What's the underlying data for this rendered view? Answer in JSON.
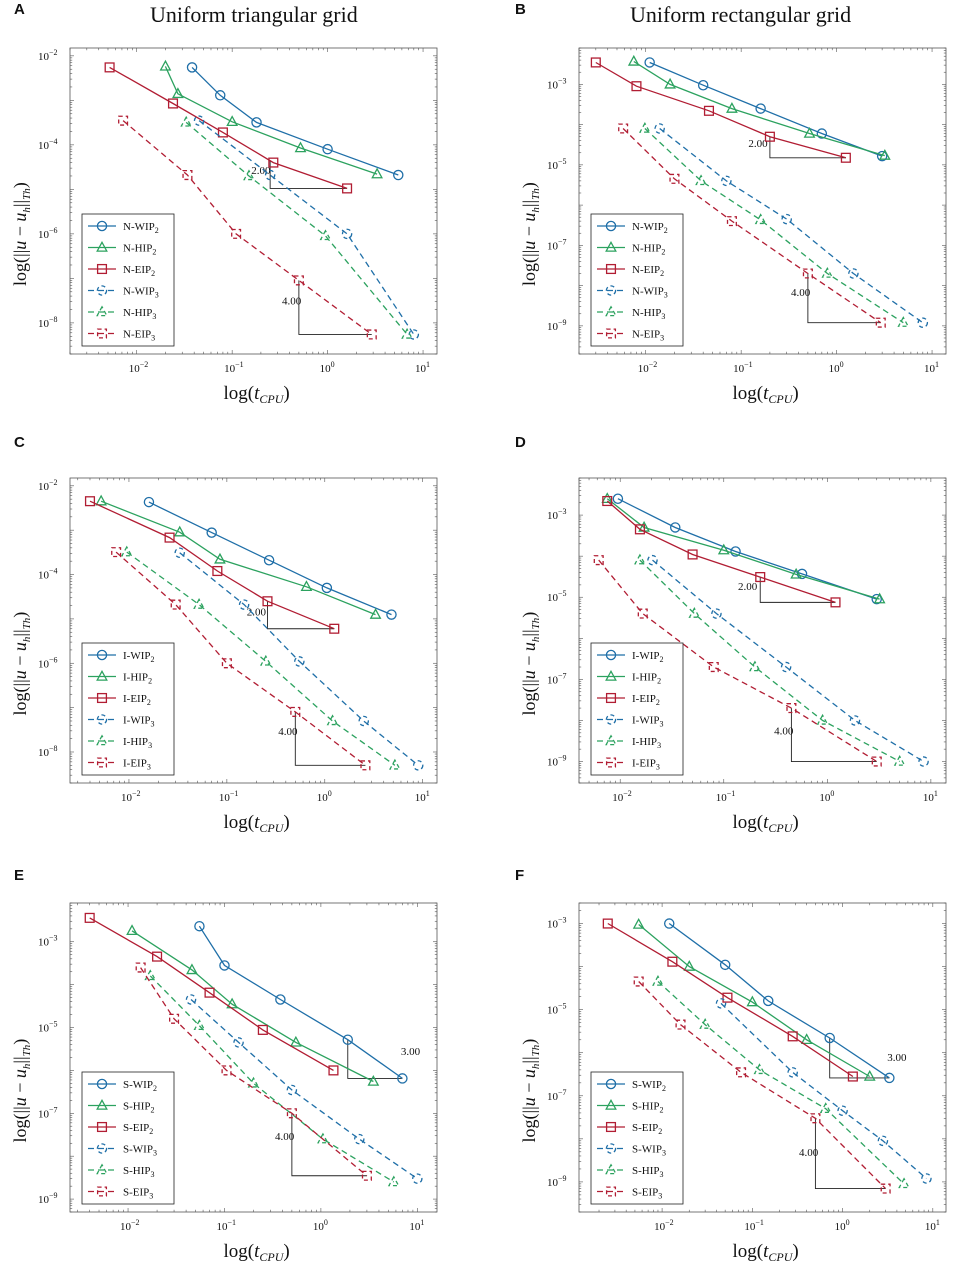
{
  "figure": {
    "col_titles": [
      "Uniform triangular grid",
      "Uniform rectangular grid"
    ]
  },
  "colors": {
    "WIP": "#1f6fa8",
    "HIP": "#2ca25f",
    "EIP": "#b11d33",
    "axis": "#555555",
    "text": "#111111"
  },
  "chart_data": [
    {
      "panel": "A",
      "type": "line",
      "title": "Uniform triangular grid",
      "xlabel": "log(t_CPU)",
      "ylabel": "log(||u − u_h||_Th)",
      "xscale": "log",
      "yscale": "log",
      "xlim": [
        0.002,
        14
      ],
      "ylim": [
        2e-09,
        0.015
      ],
      "xticks": [
        0.01,
        0.1,
        1,
        10
      ],
      "yticks": [
        1e-08,
        1e-06,
        0.0001,
        0.01
      ],
      "legend_position": "bottom-left",
      "series": [
        {
          "name": "N-WIP2",
          "color": "WIP",
          "dash": false,
          "marker": "circle",
          "x": [
            0.038,
            0.075,
            0.18,
            1.0,
            5.5
          ],
          "y": [
            0.0055,
            0.0013,
            0.00032,
            8e-05,
            2.1e-05
          ]
        },
        {
          "name": "N-HIP2",
          "color": "HIP",
          "dash": false,
          "marker": "triangle",
          "x": [
            0.02,
            0.027,
            0.1,
            0.52,
            3.3
          ],
          "y": [
            0.0058,
            0.0014,
            0.00033,
            8.5e-05,
            2.2e-05
          ]
        },
        {
          "name": "N-EIP2",
          "color": "EIP",
          "dash": false,
          "marker": "square",
          "x": [
            0.0052,
            0.024,
            0.08,
            0.27,
            1.6
          ],
          "y": [
            0.0055,
            0.00085,
            0.00019,
            4e-05,
            1.05e-05
          ]
        },
        {
          "name": "N-WIP3",
          "color": "WIP",
          "dash": true,
          "marker": "circle",
          "x": [
            0.045,
            0.25,
            1.6,
            8.0
          ],
          "y": [
            0.00035,
            2.1e-05,
            1e-06,
            5.5e-09
          ]
        },
        {
          "name": "N-HIP3",
          "color": "HIP",
          "dash": true,
          "marker": "triangle",
          "x": [
            0.033,
            0.15,
            0.95,
            6.8
          ],
          "y": [
            0.00032,
            2e-05,
            9e-07,
            5.5e-09
          ]
        },
        {
          "name": "N-EIP3",
          "color": "EIP",
          "dash": true,
          "marker": "square",
          "x": [
            0.0072,
            0.034,
            0.11,
            0.5,
            2.9
          ],
          "y": [
            0.00035,
            2.1e-05,
            1e-06,
            9e-08,
            5.5e-09
          ]
        }
      ],
      "slopes": [
        {
          "label": "2.00",
          "x1": 0.25,
          "x2": 1.6,
          "y1": 4.5e-05,
          "y2": 1.05e-05,
          "label_x": 0.2,
          "label_y": 2.2e-05
        },
        {
          "label": "4.00",
          "x1": 0.5,
          "x2": 2.9,
          "y1": 9e-08,
          "y2": 5.5e-09,
          "label_x": 0.42,
          "label_y": 2.6e-08
        }
      ]
    },
    {
      "panel": "B",
      "type": "line",
      "title": "Uniform rectangular grid",
      "xlabel": "log(t_CPU)",
      "ylabel": "log(||u − u_h||_Th)",
      "xscale": "log",
      "yscale": "log",
      "xlim": [
        0.002,
        14
      ],
      "ylim": [
        2e-10,
        0.008
      ],
      "xticks": [
        0.01,
        0.1,
        1,
        10
      ],
      "yticks": [
        1e-09,
        1e-07,
        1e-05,
        0.001
      ],
      "legend_position": "bottom-left",
      "series": [
        {
          "name": "N-WIP2",
          "color": "WIP",
          "dash": false,
          "marker": "circle",
          "x": [
            0.011,
            0.04,
            0.16,
            0.7,
            3.0
          ],
          "y": [
            0.0035,
            0.00095,
            0.00025,
            6e-05,
            1.65e-05
          ]
        },
        {
          "name": "N-HIP2",
          "color": "HIP",
          "dash": false,
          "marker": "triangle",
          "x": [
            0.0075,
            0.018,
            0.08,
            0.52,
            3.2
          ],
          "y": [
            0.0037,
            0.001,
            0.00025,
            6e-05,
            1.7e-05
          ]
        },
        {
          "name": "N-EIP2",
          "color": "EIP",
          "dash": false,
          "marker": "square",
          "x": [
            0.003,
            0.008,
            0.046,
            0.2,
            1.25
          ],
          "y": [
            0.0035,
            0.0009,
            0.00022,
            5e-05,
            1.5e-05
          ]
        },
        {
          "name": "N-WIP3",
          "color": "WIP",
          "dash": true,
          "marker": "circle",
          "x": [
            0.014,
            0.07,
            0.3,
            1.5,
            8.0
          ],
          "y": [
            8e-05,
            4e-06,
            4.5e-07,
            2e-08,
            1.2e-09
          ]
        },
        {
          "name": "N-HIP3",
          "color": "HIP",
          "dash": true,
          "marker": "triangle",
          "x": [
            0.0098,
            0.038,
            0.16,
            0.8,
            5.0
          ],
          "y": [
            8e-05,
            4e-06,
            4.3e-07,
            2e-08,
            1.2e-09
          ]
        },
        {
          "name": "N-EIP3",
          "color": "EIP",
          "dash": true,
          "marker": "square",
          "x": [
            0.0058,
            0.02,
            0.08,
            0.5,
            2.9
          ],
          "y": [
            8e-05,
            4.5e-06,
            4e-07,
            2e-08,
            1.2e-09
          ]
        }
      ],
      "slopes": [
        {
          "label": "2.00",
          "x1": 0.2,
          "x2": 1.25,
          "y1": 5e-05,
          "y2": 1.5e-05,
          "label_x": 0.15,
          "label_y": 2.8e-05
        },
        {
          "label": "4.00",
          "x1": 0.5,
          "x2": 2.9,
          "y1": 2e-08,
          "y2": 1.2e-09,
          "label_x": 0.42,
          "label_y": 5.5e-09
        }
      ]
    },
    {
      "panel": "C",
      "type": "line",
      "title": "",
      "xlabel": "log(t_CPU)",
      "ylabel": "log(||u − u_h||_Th)",
      "xscale": "log",
      "yscale": "log",
      "xlim": [
        0.0025,
        14
      ],
      "ylim": [
        2e-09,
        0.015
      ],
      "xticks": [
        0.01,
        0.1,
        1,
        10
      ],
      "yticks": [
        1e-08,
        1e-06,
        0.0001,
        0.01
      ],
      "legend_position": "bottom-left",
      "series": [
        {
          "name": "I-WIP2",
          "color": "WIP",
          "dash": false,
          "marker": "circle",
          "x": [
            0.016,
            0.07,
            0.27,
            1.05,
            4.8
          ],
          "y": [
            0.0043,
            0.00088,
            0.00021,
            5e-05,
            1.25e-05
          ]
        },
        {
          "name": "I-HIP2",
          "color": "HIP",
          "dash": false,
          "marker": "triangle",
          "x": [
            0.0052,
            0.033,
            0.085,
            0.65,
            3.3
          ],
          "y": [
            0.0045,
            0.0009,
            0.00022,
            5.3e-05,
            1.25e-05
          ]
        },
        {
          "name": "I-EIP2",
          "color": "EIP",
          "dash": false,
          "marker": "square",
          "x": [
            0.004,
            0.026,
            0.08,
            0.26,
            1.25
          ],
          "y": [
            0.0045,
            0.00068,
            0.00012,
            2.5e-05,
            6e-06
          ]
        },
        {
          "name": "I-WIP3",
          "color": "WIP",
          "dash": true,
          "marker": "circle",
          "x": [
            0.033,
            0.15,
            0.55,
            2.5,
            9.0
          ],
          "y": [
            0.00031,
            2.1e-05,
            1.1e-06,
            5e-08,
            5e-09
          ]
        },
        {
          "name": "I-HIP3",
          "color": "HIP",
          "dash": true,
          "marker": "triangle",
          "x": [
            0.0095,
            0.052,
            0.25,
            1.2,
            5.2
          ],
          "y": [
            0.00032,
            2.1e-05,
            1.1e-06,
            5e-08,
            5e-09
          ]
        },
        {
          "name": "I-EIP3",
          "color": "EIP",
          "dash": true,
          "marker": "square",
          "x": [
            0.0074,
            0.03,
            0.1,
            0.5,
            2.6
          ],
          "y": [
            0.00032,
            2.1e-05,
            1e-06,
            8e-08,
            5e-09
          ]
        }
      ],
      "slopes": [
        {
          "label": "2.00",
          "x1": 0.26,
          "x2": 1.25,
          "y1": 2.5e-05,
          "y2": 6e-06,
          "label_x": 0.2,
          "label_y": 1.2e-05
        },
        {
          "label": "4.00",
          "x1": 0.5,
          "x2": 2.6,
          "y1": 8e-08,
          "y2": 5e-09,
          "label_x": 0.42,
          "label_y": 2.4e-08
        }
      ]
    },
    {
      "panel": "D",
      "type": "line",
      "title": "",
      "xlabel": "log(t_CPU)",
      "ylabel": "log(||u − u_h||_Th)",
      "xscale": "log",
      "yscale": "log",
      "xlim": [
        0.004,
        14
      ],
      "ylim": [
        3e-10,
        0.008
      ],
      "xticks": [
        0.01,
        0.1,
        1,
        10
      ],
      "yticks": [
        1e-09,
        1e-07,
        1e-05,
        0.001
      ],
      "legend_position": "bottom-left",
      "series": [
        {
          "name": "I-WIP2",
          "color": "WIP",
          "dash": false,
          "marker": "circle",
          "x": [
            0.0095,
            0.034,
            0.13,
            0.57,
            3.0
          ],
          "y": [
            0.0025,
            0.0005,
            0.00013,
            3.7e-05,
            9e-06
          ]
        },
        {
          "name": "I-HIP2",
          "color": "HIP",
          "dash": false,
          "marker": "triangle",
          "x": [
            0.0075,
            0.017,
            0.1,
            0.5,
            3.2
          ],
          "y": [
            0.0025,
            0.0005,
            0.00014,
            3.6e-05,
            9e-06
          ]
        },
        {
          "name": "I-EIP2",
          "color": "EIP",
          "dash": false,
          "marker": "square",
          "x": [
            0.0075,
            0.0155,
            0.05,
            0.225,
            1.2
          ],
          "y": [
            0.0022,
            0.00045,
            0.00011,
            3.1e-05,
            7.5e-06
          ]
        },
        {
          "name": "I-WIP3",
          "color": "WIP",
          "dash": true,
          "marker": "circle",
          "x": [
            0.0205,
            0.085,
            0.4,
            1.85,
            8.5
          ],
          "y": [
            8e-05,
            4e-06,
            2e-07,
            1e-08,
            1e-09
          ]
        },
        {
          "name": "I-HIP3",
          "color": "HIP",
          "dash": true,
          "marker": "triangle",
          "x": [
            0.0155,
            0.052,
            0.2,
            0.9,
            5.0
          ],
          "y": [
            8e-05,
            4e-06,
            2e-07,
            1e-08,
            1e-09
          ]
        },
        {
          "name": "I-EIP3",
          "color": "EIP",
          "dash": true,
          "marker": "square",
          "x": [
            0.0062,
            0.0165,
            0.08,
            0.45,
            3.0
          ],
          "y": [
            8e-05,
            4e-06,
            2e-07,
            2e-08,
            1e-09
          ]
        }
      ],
      "slopes": [
        {
          "label": "2.00",
          "x1": 0.225,
          "x2": 1.2,
          "y1": 3.1e-05,
          "y2": 7.5e-06,
          "label_x": 0.17,
          "label_y": 1.5e-05
        },
        {
          "label": "4.00",
          "x1": 0.45,
          "x2": 3.0,
          "y1": 2e-08,
          "y2": 1e-09,
          "label_x": 0.38,
          "label_y": 4.5e-09
        }
      ]
    },
    {
      "panel": "E",
      "type": "line",
      "title": "",
      "xlabel": "log(t_CPU)",
      "ylabel": "log(||u − u_h||_Th)",
      "xscale": "log",
      "yscale": "log",
      "xlim": [
        0.0025,
        16
      ],
      "ylim": [
        5e-10,
        0.008
      ],
      "xticks": [
        0.01,
        0.1,
        1,
        10
      ],
      "yticks": [
        1e-09,
        1e-07,
        1e-05,
        0.001
      ],
      "legend_position": "bottom-left",
      "series": [
        {
          "name": "S-WIP2",
          "color": "WIP",
          "dash": false,
          "marker": "circle",
          "x": [
            0.055,
            0.1,
            0.38,
            1.9,
            7.0
          ],
          "y": [
            0.0023,
            0.00028,
            4.5e-05,
            5.2e-06,
            6.5e-07
          ]
        },
        {
          "name": "S-HIP2",
          "color": "HIP",
          "dash": false,
          "marker": "triangle",
          "x": [
            0.011,
            0.046,
            0.12,
            0.55,
            3.5
          ],
          "y": [
            0.0018,
            0.00022,
            3.5e-05,
            4.5e-06,
            5.5e-07
          ]
        },
        {
          "name": "S-EIP2",
          "color": "EIP",
          "dash": false,
          "marker": "square",
          "x": [
            0.004,
            0.02,
            0.07,
            0.25,
            1.35
          ],
          "y": [
            0.0036,
            0.00045,
            6.5e-05,
            8.8e-06,
            1e-06
          ]
        },
        {
          "name": "S-WIP3",
          "color": "WIP",
          "dash": true,
          "marker": "circle",
          "x": [
            0.045,
            0.14,
            0.5,
            2.5,
            10.0
          ],
          "y": [
            4.5e-05,
            4.5e-06,
            3.5e-07,
            2.5e-08,
            3e-09
          ]
        },
        {
          "name": "S-HIP3",
          "color": "HIP",
          "dash": true,
          "marker": "triangle",
          "x": [
            0.017,
            0.055,
            0.2,
            1.05,
            5.7
          ],
          "y": [
            0.00016,
            1.1e-05,
            5e-07,
            2.5e-08,
            2.5e-09
          ]
        },
        {
          "name": "S-EIP3",
          "color": "EIP",
          "dash": true,
          "marker": "square",
          "x": [
            0.0135,
            0.03,
            0.105,
            0.5,
            3.0
          ],
          "y": [
            0.00025,
            1.6e-05,
            1e-06,
            1e-07,
            3.5e-09
          ]
        }
      ],
      "slopes": [
        {
          "label": "3.00",
          "x1": 1.9,
          "x2": 7.0,
          "y1": 5.2e-06,
          "y2": 6.5e-07,
          "label_x": 8.5,
          "label_y": 2.3e-06
        },
        {
          "label": "4.00",
          "x1": 0.5,
          "x2": 3.0,
          "y1": 1e-07,
          "y2": 3.5e-09,
          "label_x": 0.42,
          "label_y": 2.4e-08
        }
      ]
    },
    {
      "panel": "F",
      "type": "line",
      "title": "",
      "xlabel": "log(t_CPU)",
      "ylabel": "log(||u − u_h||_Th)",
      "xscale": "log",
      "yscale": "log",
      "xlim": [
        0.0012,
        14
      ],
      "ylim": [
        2e-10,
        0.003
      ],
      "xticks": [
        0.01,
        0.1,
        1,
        10
      ],
      "yticks": [
        1e-09,
        1e-07,
        1e-05,
        0.001
      ],
      "legend_position": "bottom-left",
      "series": [
        {
          "name": "S-WIP2",
          "color": "WIP",
          "dash": false,
          "marker": "circle",
          "x": [
            0.012,
            0.05,
            0.15,
            0.72,
            3.3
          ],
          "y": [
            0.001,
            0.00011,
            1.6e-05,
            2.2e-06,
            2.6e-07
          ]
        },
        {
          "name": "S-HIP2",
          "color": "HIP",
          "dash": false,
          "marker": "triangle",
          "x": [
            0.0055,
            0.02,
            0.1,
            0.4,
            2.0
          ],
          "y": [
            0.00095,
            0.0001,
            1.5e-05,
            2e-06,
            2.8e-07
          ]
        },
        {
          "name": "S-EIP2",
          "color": "EIP",
          "dash": false,
          "marker": "square",
          "x": [
            0.0025,
            0.013,
            0.053,
            0.28,
            1.3
          ],
          "y": [
            0.001,
            0.00013,
            1.9e-05,
            2.4e-06,
            2.8e-07
          ]
        },
        {
          "name": "S-WIP3",
          "color": "WIP",
          "dash": true,
          "marker": "circle",
          "x": [
            0.045,
            0.28,
            1.0,
            2.8,
            8.5
          ],
          "y": [
            1.4e-05,
            3.5e-07,
            4.5e-08,
            9e-09,
            1.2e-09
          ]
        },
        {
          "name": "S-HIP3",
          "color": "HIP",
          "dash": true,
          "marker": "triangle",
          "x": [
            0.009,
            0.03,
            0.12,
            0.65,
            4.8
          ],
          "y": [
            4.5e-05,
            4.5e-06,
            4e-07,
            5e-08,
            9e-10
          ]
        },
        {
          "name": "S-EIP3",
          "color": "EIP",
          "dash": true,
          "marker": "square",
          "x": [
            0.0055,
            0.016,
            0.075,
            0.5,
            3.0
          ],
          "y": [
            4.5e-05,
            4.5e-06,
            3.5e-07,
            3e-08,
            7e-10
          ]
        }
      ],
      "slopes": [
        {
          "label": "3.00",
          "x1": 0.72,
          "x2": 3.3,
          "y1": 2.2e-06,
          "y2": 2.6e-07,
          "label_x": 4.0,
          "label_y": 6.5e-07
        },
        {
          "label": "4.00",
          "x1": 0.5,
          "x2": 3.0,
          "y1": 3e-08,
          "y2": 7e-10,
          "label_x": 0.42,
          "label_y": 4e-09
        }
      ]
    }
  ]
}
